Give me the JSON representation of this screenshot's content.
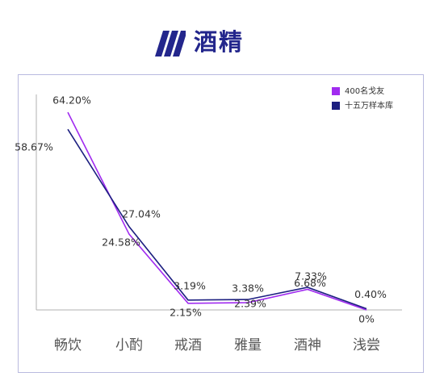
{
  "header": {
    "title": "酒精",
    "logo_icon": "triple-slash-logo-icon"
  },
  "colors": {
    "brand": "#23268c",
    "series_a": "#a12bf0",
    "series_b": "#1c1f80",
    "panel_border": "#b9badf"
  },
  "chart_data": {
    "type": "line",
    "title": "",
    "xlabel": "",
    "ylabel": "",
    "ylim": [
      0,
      70
    ],
    "grid": false,
    "legend_position": "top-right",
    "categories": [
      "畅饮",
      "小酌",
      "戒酒",
      "雅量",
      "酒神",
      "浅尝"
    ],
    "series": [
      {
        "name": "400名戈友",
        "color": "#a12bf0",
        "values": [
          64.2,
          24.58,
          2.15,
          2.39,
          6.68,
          0
        ],
        "labels": [
          "64.20%",
          "24.58%",
          "2.15%",
          "2.39%",
          "6.68%",
          "0%"
        ]
      },
      {
        "name": "十五万样本库",
        "color": "#1c1f80",
        "values": [
          58.67,
          27.04,
          3.19,
          3.38,
          7.33,
          0.4
        ],
        "labels": [
          "58.67%",
          "27.04%",
          "3.19%",
          "3.38%",
          "7.33%",
          "0.40%"
        ]
      }
    ]
  }
}
